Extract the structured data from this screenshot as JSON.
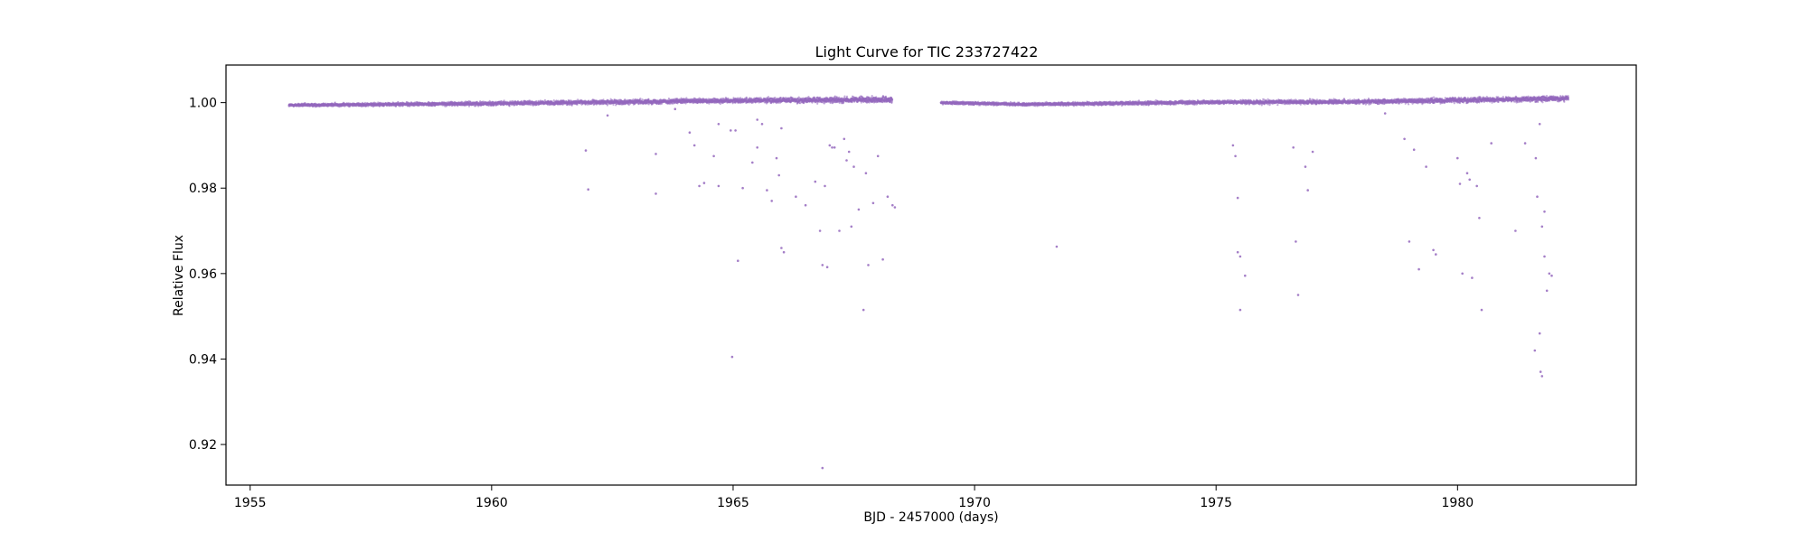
{
  "chart_data": {
    "type": "scatter",
    "title": "Light Curve for TIC 233727422",
    "xlabel": "BJD - 2457000 (days)",
    "ylabel": "Relative Flux",
    "xlim": [
      1954.5,
      1983.7
    ],
    "ylim": [
      0.9105,
      1.0088
    ],
    "xticks": [
      1955,
      1960,
      1965,
      1970,
      1975,
      1980
    ],
    "xtick_labels": [
      "1955",
      "1960",
      "1965",
      "1970",
      "1975",
      "1980"
    ],
    "yticks": [
      0.92,
      0.94,
      0.96,
      0.98,
      1.0
    ],
    "ytick_labels": [
      "0.92",
      "0.94",
      "0.96",
      "0.98",
      "1.00"
    ],
    "grid": false,
    "color": "#9467bd",
    "series": [
      {
        "segments": [
          {
            "x_start": 1955.8,
            "x_end": 1968.3,
            "trend": [
              [
                1955.8,
                0.9994
              ],
              [
                1960.0,
                0.9998
              ],
              [
                1963.0,
                1.0002
              ],
              [
                1965.0,
                1.0005
              ],
              [
                1968.3,
                1.0007
              ]
            ],
            "scatter": 0.0012
          },
          {
            "x_start": 1969.3,
            "x_end": 1982.3,
            "trend": [
              [
                1969.3,
                1.0
              ],
              [
                1971.0,
                0.9996
              ],
              [
                1975.0,
                1.0001
              ],
              [
                1978.0,
                1.0002
              ],
              [
                1982.3,
                1.001
              ]
            ],
            "scatter": 0.0011
          }
        ],
        "outliers": {
          "x": [
            1961.95,
            1962.0,
            1962.4,
            1963.4,
            1963.4,
            1963.8,
            1964.1,
            1964.2,
            1964.3,
            1964.4,
            1964.6,
            1964.7,
            1964.7,
            1964.95,
            1964.98,
            1965.05,
            1965.1,
            1965.2,
            1965.4,
            1965.5,
            1965.5,
            1965.6,
            1965.7,
            1965.8,
            1965.9,
            1965.95,
            1966.0,
            1966.05,
            1966.0,
            1966.3,
            1966.5,
            1966.7,
            1966.8,
            1966.85,
            1966.9,
            1966.95,
            1967.0,
            1967.05,
            1967.1,
            1967.2,
            1967.3,
            1967.35,
            1967.4,
            1967.45,
            1967.5,
            1967.6,
            1967.7,
            1967.75,
            1967.8,
            1967.9,
            1968.0,
            1968.1,
            1968.2,
            1968.3,
            1968.35,
            1971.7,
            1975.35,
            1975.4,
            1975.45,
            1975.5,
            1975.6,
            1975.45,
            1975.5,
            1976.6,
            1976.65,
            1976.7,
            1976.85,
            1976.9,
            1977.0,
            1978.5,
            1978.9,
            1979.0,
            1979.1,
            1979.2,
            1979.35,
            1979.5,
            1979.55,
            1980.0,
            1980.05,
            1980.1,
            1980.2,
            1980.25,
            1980.3,
            1980.4,
            1980.45,
            1980.5,
            1980.7,
            1981.2,
            1981.4,
            1981.6,
            1981.62,
            1981.65,
            1981.7,
            1981.72,
            1981.75,
            1981.8,
            1981.8,
            1981.85,
            1981.9,
            1981.95,
            1981.7,
            1981.75,
            1966.85
          ],
          "y": [
            0.9888,
            0.9797,
            0.997,
            0.988,
            0.9787,
            0.9985,
            0.993,
            0.99,
            0.9805,
            0.9812,
            0.9875,
            0.995,
            0.9805,
            0.9935,
            0.9405,
            0.9935,
            0.963,
            0.98,
            0.986,
            0.996,
            0.9895,
            0.995,
            0.9795,
            0.977,
            0.987,
            0.983,
            0.966,
            0.965,
            0.994,
            0.978,
            0.976,
            0.9815,
            0.97,
            0.962,
            0.9805,
            0.9615,
            0.99,
            0.9895,
            0.9895,
            0.97,
            0.9915,
            0.9865,
            0.9885,
            0.971,
            0.985,
            0.975,
            0.9515,
            0.9835,
            0.962,
            0.9765,
            0.9875,
            0.9633,
            0.978,
            0.976,
            0.9755,
            0.9663,
            0.99,
            0.9875,
            0.965,
            0.964,
            0.9595,
            0.9777,
            0.9515,
            0.9895,
            0.9675,
            0.955,
            0.985,
            0.9795,
            0.9885,
            0.9975,
            0.9915,
            0.9675,
            0.989,
            0.961,
            0.985,
            0.9655,
            0.9645,
            0.987,
            0.981,
            0.96,
            0.9835,
            0.982,
            0.959,
            0.9805,
            0.973,
            0.9515,
            0.9905,
            0.97,
            0.9905,
            0.942,
            0.987,
            0.978,
            0.946,
            0.937,
            0.971,
            0.9745,
            0.964,
            0.956,
            0.96,
            0.9595,
            0.995,
            0.936,
            0.9145
          ]
        }
      }
    ]
  }
}
